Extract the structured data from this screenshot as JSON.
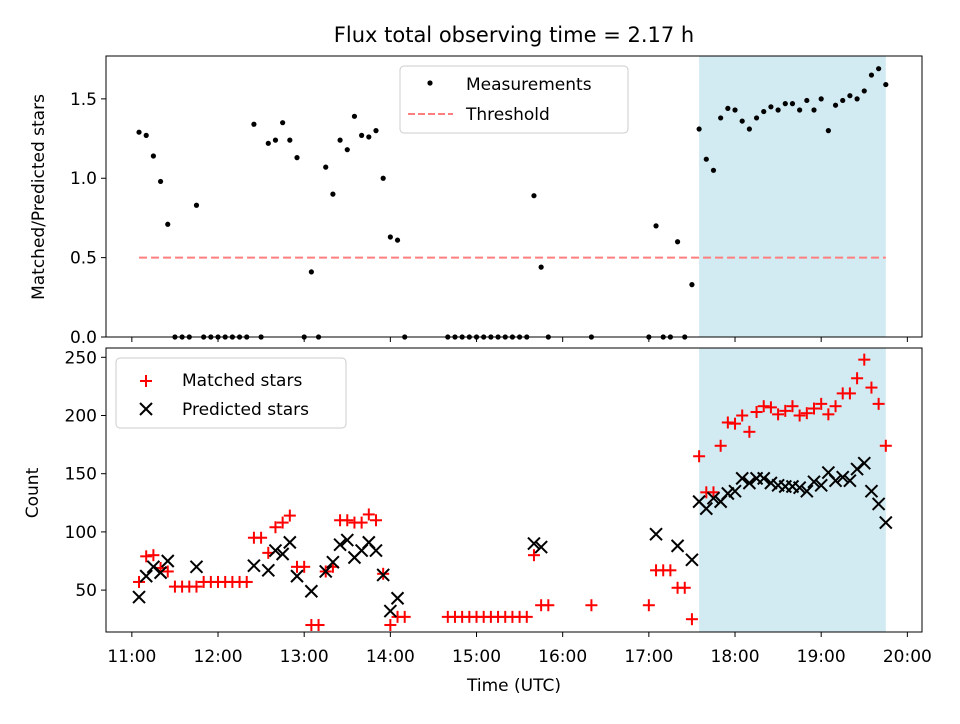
{
  "chart_data": [
    {
      "type": "scatter",
      "title": "Flux total observing time = 2.17 h",
      "ylabel": "Matched/Predicted stars",
      "ylim": [
        0,
        1.77
      ],
      "xlim_hours": [
        10.7,
        20.17
      ],
      "yticks": [
        {
          "value": 0,
          "label": "0.0"
        },
        {
          "value": 0.5,
          "label": "0.5"
        },
        {
          "value": 1.0,
          "label": "1.0"
        },
        {
          "value": 1.5,
          "label": "1.5"
        }
      ],
      "shaded_region": {
        "x_start": "17:35",
        "x_end": "19:45",
        "color": "#add8e6"
      },
      "legend": {
        "placement": "top-center",
        "measurements_label": "Measurements",
        "threshold_label": "Threshold"
      },
      "threshold": {
        "value": 0.5,
        "x_start": "11:05",
        "x_end": "19:45",
        "color": "#ff7f7f"
      },
      "series": [
        {
          "name": "Measurements",
          "color": "#000000",
          "points": [
            [
              "11:05",
              1.29
            ],
            [
              "11:10",
              1.27
            ],
            [
              "11:15",
              1.14
            ],
            [
              "11:20",
              0.98
            ],
            [
              "11:25",
              0.71
            ],
            [
              "11:30",
              0
            ],
            [
              "11:35",
              0
            ],
            [
              "11:40",
              0
            ],
            [
              "11:45",
              0.83
            ],
            [
              "11:50",
              0
            ],
            [
              "11:55",
              0
            ],
            [
              "12:00",
              0
            ],
            [
              "12:05",
              0
            ],
            [
              "12:10",
              0
            ],
            [
              "12:15",
              0
            ],
            [
              "12:20",
              0
            ],
            [
              "12:25",
              1.34
            ],
            [
              "12:30",
              0
            ],
            [
              "12:35",
              1.22
            ],
            [
              "12:40",
              1.24
            ],
            [
              "12:45",
              1.35
            ],
            [
              "12:50",
              1.24
            ],
            [
              "12:55",
              1.13
            ],
            [
              "13:00",
              0
            ],
            [
              "13:05",
              0.41
            ],
            [
              "13:10",
              0
            ],
            [
              "13:15",
              1.07
            ],
            [
              "13:20",
              0.9
            ],
            [
              "13:25",
              1.24
            ],
            [
              "13:30",
              1.18
            ],
            [
              "13:35",
              1.39
            ],
            [
              "13:40",
              1.27
            ],
            [
              "13:45",
              1.26
            ],
            [
              "13:50",
              1.3
            ],
            [
              "13:55",
              1.0
            ],
            [
              "14:00",
              0.63
            ],
            [
              "14:05",
              0.61
            ],
            [
              "14:10",
              0
            ],
            [
              "14:40",
              0
            ],
            [
              "14:45",
              0
            ],
            [
              "14:50",
              0
            ],
            [
              "14:55",
              0
            ],
            [
              "15:00",
              0
            ],
            [
              "15:05",
              0
            ],
            [
              "15:10",
              0
            ],
            [
              "15:15",
              0
            ],
            [
              "15:20",
              0
            ],
            [
              "15:25",
              0
            ],
            [
              "15:30",
              0
            ],
            [
              "15:35",
              0
            ],
            [
              "15:40",
              0.89
            ],
            [
              "15:45",
              0.44
            ],
            [
              "15:50",
              0
            ],
            [
              "16:20",
              0
            ],
            [
              "17:00",
              0
            ],
            [
              "17:05",
              0.7
            ],
            [
              "17:10",
              0
            ],
            [
              "17:15",
              0
            ],
            [
              "17:20",
              0.6
            ],
            [
              "17:25",
              0
            ],
            [
              "17:30",
              0.33
            ],
            [
              "17:35",
              1.31
            ],
            [
              "17:40",
              1.12
            ],
            [
              "17:45",
              1.05
            ],
            [
              "17:50",
              1.38
            ],
            [
              "17:55",
              1.44
            ],
            [
              "18:00",
              1.43
            ],
            [
              "18:05",
              1.36
            ],
            [
              "18:10",
              1.31
            ],
            [
              "18:15",
              1.38
            ],
            [
              "18:20",
              1.42
            ],
            [
              "18:25",
              1.45
            ],
            [
              "18:30",
              1.43
            ],
            [
              "18:35",
              1.47
            ],
            [
              "18:40",
              1.47
            ],
            [
              "18:45",
              1.43
            ],
            [
              "18:50",
              1.49
            ],
            [
              "18:55",
              1.43
            ],
            [
              "19:00",
              1.5
            ],
            [
              "19:05",
              1.3
            ],
            [
              "19:10",
              1.46
            ],
            [
              "19:15",
              1.49
            ],
            [
              "19:20",
              1.52
            ],
            [
              "19:25",
              1.5
            ],
            [
              "19:30",
              1.55
            ],
            [
              "19:35",
              1.65
            ],
            [
              "19:40",
              1.69
            ],
            [
              "19:45",
              1.59
            ]
          ]
        }
      ]
    },
    {
      "type": "scatter",
      "xlabel": "Time (UTC)",
      "ylabel": "Count",
      "ylim": [
        14,
        258
      ],
      "xlim_hours": [
        10.7,
        20.17
      ],
      "yticks": [
        {
          "value": 50,
          "label": "50"
        },
        {
          "value": 100,
          "label": "100"
        },
        {
          "value": 150,
          "label": "150"
        },
        {
          "value": 200,
          "label": "200"
        },
        {
          "value": 250,
          "label": "250"
        }
      ],
      "xticks": [
        {
          "value": 11,
          "label": "11:00"
        },
        {
          "value": 12,
          "label": "12:00"
        },
        {
          "value": 13,
          "label": "13:00"
        },
        {
          "value": 14,
          "label": "14:00"
        },
        {
          "value": 15,
          "label": "15:00"
        },
        {
          "value": 16,
          "label": "16:00"
        },
        {
          "value": 17,
          "label": "17:00"
        },
        {
          "value": 18,
          "label": "18:00"
        },
        {
          "value": 19,
          "label": "19:00"
        },
        {
          "value": 20,
          "label": "20:00"
        }
      ],
      "shaded_region": {
        "x_start": "17:35",
        "x_end": "19:45",
        "color": "#add8e6"
      },
      "legend": {
        "placement": "top-left",
        "matched_label": "Matched stars",
        "predicted_label": "Predicted stars"
      },
      "series": [
        {
          "name": "Matched stars",
          "marker": "plus",
          "color": "#ff0000",
          "points": [
            [
              "11:05",
              57
            ],
            [
              "11:10",
              79
            ],
            [
              "11:15",
              80
            ],
            [
              "11:20",
              69
            ],
            [
              "11:25",
              66
            ],
            [
              "11:30",
              53
            ],
            [
              "11:35",
              53
            ],
            [
              "11:40",
              53
            ],
            [
              "11:45",
              53
            ],
            [
              "11:50",
              57
            ],
            [
              "11:55",
              57
            ],
            [
              "12:00",
              57
            ],
            [
              "12:05",
              57
            ],
            [
              "12:10",
              57
            ],
            [
              "12:15",
              57
            ],
            [
              "12:20",
              57
            ],
            [
              "12:25",
              95
            ],
            [
              "12:30",
              95
            ],
            [
              "12:35",
              82
            ],
            [
              "12:40",
              104
            ],
            [
              "12:45",
              108
            ],
            [
              "12:50",
              114
            ],
            [
              "12:55",
              70
            ],
            [
              "13:00",
              70
            ],
            [
              "13:05",
              20
            ],
            [
              "13:10",
              20
            ],
            [
              "13:15",
              66
            ],
            [
              "13:20",
              70
            ],
            [
              "13:25",
              110
            ],
            [
              "13:30",
              110
            ],
            [
              "13:35",
              108
            ],
            [
              "13:40",
              108
            ],
            [
              "13:45",
              115
            ],
            [
              "13:50",
              110
            ],
            [
              "13:55",
              64
            ],
            [
              "14:00",
              20
            ],
            [
              "14:05",
              27
            ],
            [
              "14:10",
              27
            ],
            [
              "14:40",
              27
            ],
            [
              "14:45",
              27
            ],
            [
              "14:50",
              27
            ],
            [
              "14:55",
              27
            ],
            [
              "15:00",
              27
            ],
            [
              "15:05",
              27
            ],
            [
              "15:10",
              27
            ],
            [
              "15:15",
              27
            ],
            [
              "15:20",
              27
            ],
            [
              "15:25",
              27
            ],
            [
              "15:30",
              27
            ],
            [
              "15:35",
              27
            ],
            [
              "15:40",
              80
            ],
            [
              "15:45",
              37
            ],
            [
              "15:50",
              37
            ],
            [
              "16:20",
              37
            ],
            [
              "17:00",
              37
            ],
            [
              "17:05",
              67
            ],
            [
              "17:10",
              67
            ],
            [
              "17:15",
              67
            ],
            [
              "17:20",
              52
            ],
            [
              "17:25",
              52
            ],
            [
              "17:30",
              25
            ],
            [
              "17:35",
              165
            ],
            [
              "17:40",
              134
            ],
            [
              "17:45",
              134
            ],
            [
              "17:50",
              174
            ],
            [
              "17:55",
              194
            ],
            [
              "18:00",
              193
            ],
            [
              "18:05",
              200
            ],
            [
              "18:10",
              186
            ],
            [
              "18:15",
              203
            ],
            [
              "18:20",
              208
            ],
            [
              "18:25",
              207
            ],
            [
              "18:30",
              201
            ],
            [
              "18:35",
              204
            ],
            [
              "18:40",
              208
            ],
            [
              "18:45",
              200
            ],
            [
              "18:50",
              202
            ],
            [
              "18:55",
              206
            ],
            [
              "19:00",
              210
            ],
            [
              "19:05",
              201
            ],
            [
              "19:10",
              208
            ],
            [
              "19:15",
              219
            ],
            [
              "19:20",
              219
            ],
            [
              "19:25",
              232
            ],
            [
              "19:30",
              248
            ],
            [
              "19:35",
              224
            ],
            [
              "19:40",
              210
            ],
            [
              "19:45",
              174
            ]
          ]
        },
        {
          "name": "Predicted stars",
          "marker": "x",
          "color": "#000000",
          "points": [
            [
              "11:05",
              44
            ],
            [
              "11:10",
              62
            ],
            [
              "11:15",
              70
            ],
            [
              "11:20",
              65
            ],
            [
              "11:25",
              75
            ],
            [
              "11:45",
              70
            ],
            [
              "12:25",
              71
            ],
            [
              "12:35",
              67
            ],
            [
              "12:40",
              84
            ],
            [
              "12:45",
              81
            ],
            [
              "12:50",
              91
            ],
            [
              "12:55",
              62
            ],
            [
              "13:05",
              49
            ],
            [
              "13:15",
              66
            ],
            [
              "13:20",
              74
            ],
            [
              "13:25",
              89
            ],
            [
              "13:30",
              93
            ],
            [
              "13:35",
              78
            ],
            [
              "13:40",
              84
            ],
            [
              "13:45",
              91
            ],
            [
              "13:50",
              84
            ],
            [
              "13:55",
              63
            ],
            [
              "14:00",
              32
            ],
            [
              "14:05",
              43
            ],
            [
              "15:40",
              90
            ],
            [
              "15:45",
              87
            ],
            [
              "17:05",
              98
            ],
            [
              "17:20",
              88
            ],
            [
              "17:30",
              76
            ],
            [
              "17:35",
              126
            ],
            [
              "17:40",
              120
            ],
            [
              "17:45",
              129
            ],
            [
              "17:50",
              126
            ],
            [
              "17:55",
              133
            ],
            [
              "18:00",
              135
            ],
            [
              "18:05",
              146
            ],
            [
              "18:10",
              142
            ],
            [
              "18:15",
              146
            ],
            [
              "18:20",
              146
            ],
            [
              "18:25",
              142
            ],
            [
              "18:30",
              140
            ],
            [
              "18:35",
              139
            ],
            [
              "18:40",
              139
            ],
            [
              "18:45",
              138
            ],
            [
              "18:50",
              135
            ],
            [
              "18:55",
              143
            ],
            [
              "19:00",
              140
            ],
            [
              "19:05",
              151
            ],
            [
              "19:10",
              144
            ],
            [
              "19:15",
              147
            ],
            [
              "19:20",
              144
            ],
            [
              "19:25",
              154
            ],
            [
              "19:30",
              159
            ],
            [
              "19:35",
              135
            ],
            [
              "19:40",
              124
            ],
            [
              "19:45",
              108
            ]
          ]
        }
      ]
    }
  ]
}
